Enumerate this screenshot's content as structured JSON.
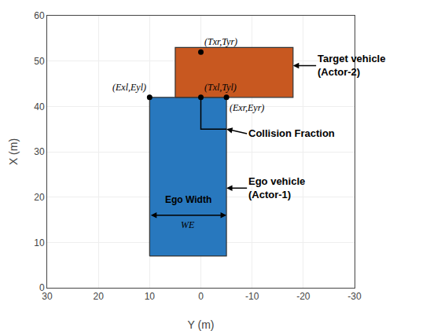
{
  "chart_data": {
    "type": "diagram",
    "xlabel": "Y (m)",
    "ylabel": "X (m)",
    "xlim": [
      30,
      -30
    ],
    "ylim": [
      0,
      60
    ],
    "xticks": [
      30,
      20,
      10,
      0,
      -10,
      -20,
      -30
    ],
    "yticks": [
      0,
      10,
      20,
      30,
      40,
      50,
      60
    ],
    "grid": true,
    "rects": [
      {
        "x": [
          10,
          -5
        ],
        "y": [
          7,
          42
        ],
        "color": "#2878be"
      },
      {
        "x": [
          5,
          -18
        ],
        "y": [
          42,
          53
        ],
        "color": "#c85820"
      }
    ],
    "lines": [
      {
        "x": [
          0,
          0,
          -5
        ],
        "y": [
          42,
          35,
          35
        ],
        "color": "#000000"
      }
    ],
    "points": [
      {
        "x": 10,
        "y": 42,
        "label": "(Exl,Eyl)"
      },
      {
        "x": 0,
        "y": 42,
        "label": "(Txl,Tyl)"
      },
      {
        "x": -5,
        "y": 42,
        "label": "(Exr,Eyr)"
      },
      {
        "x": 0,
        "y": 52,
        "label": "(Txr,Tyr)"
      }
    ],
    "marker": "circle",
    "dimension": {
      "x": [
        10,
        -5
      ],
      "y": 16,
      "label": "Ego Width",
      "label_x": 2.5,
      "label_y": 17.8,
      "symbol": "WE",
      "symbol_x": 2.5,
      "symbol_y": 15.5
    },
    "annotations": [
      {
        "text": "Target vehicle\n(Actor-2)",
        "x": -18,
        "y": 49,
        "ax": -22.5,
        "ay": 49
      },
      {
        "text": "Collision Fraction",
        "x": -5,
        "y": 35,
        "ax": -9,
        "ay": 34
      },
      {
        "text": "Ego vehicle\n(Actor-1)",
        "x": -5,
        "y": 22,
        "ax": -9,
        "ay": 22
      }
    ]
  }
}
